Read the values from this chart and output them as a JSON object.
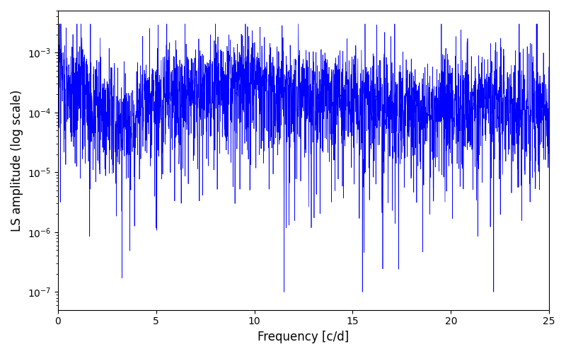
{
  "xlabel": "Frequency [c/d]",
  "ylabel": "LS amplitude (log scale)",
  "line_color": "#0000ff",
  "xlim": [
    0,
    25
  ],
  "ylim_log_min": -7.3,
  "ylim_log_max": -2.3,
  "freq_min": 0.0,
  "freq_max": 25.0,
  "n_points": 3000,
  "seed": 137,
  "background_color": "#ffffff",
  "linewidth": 0.5
}
